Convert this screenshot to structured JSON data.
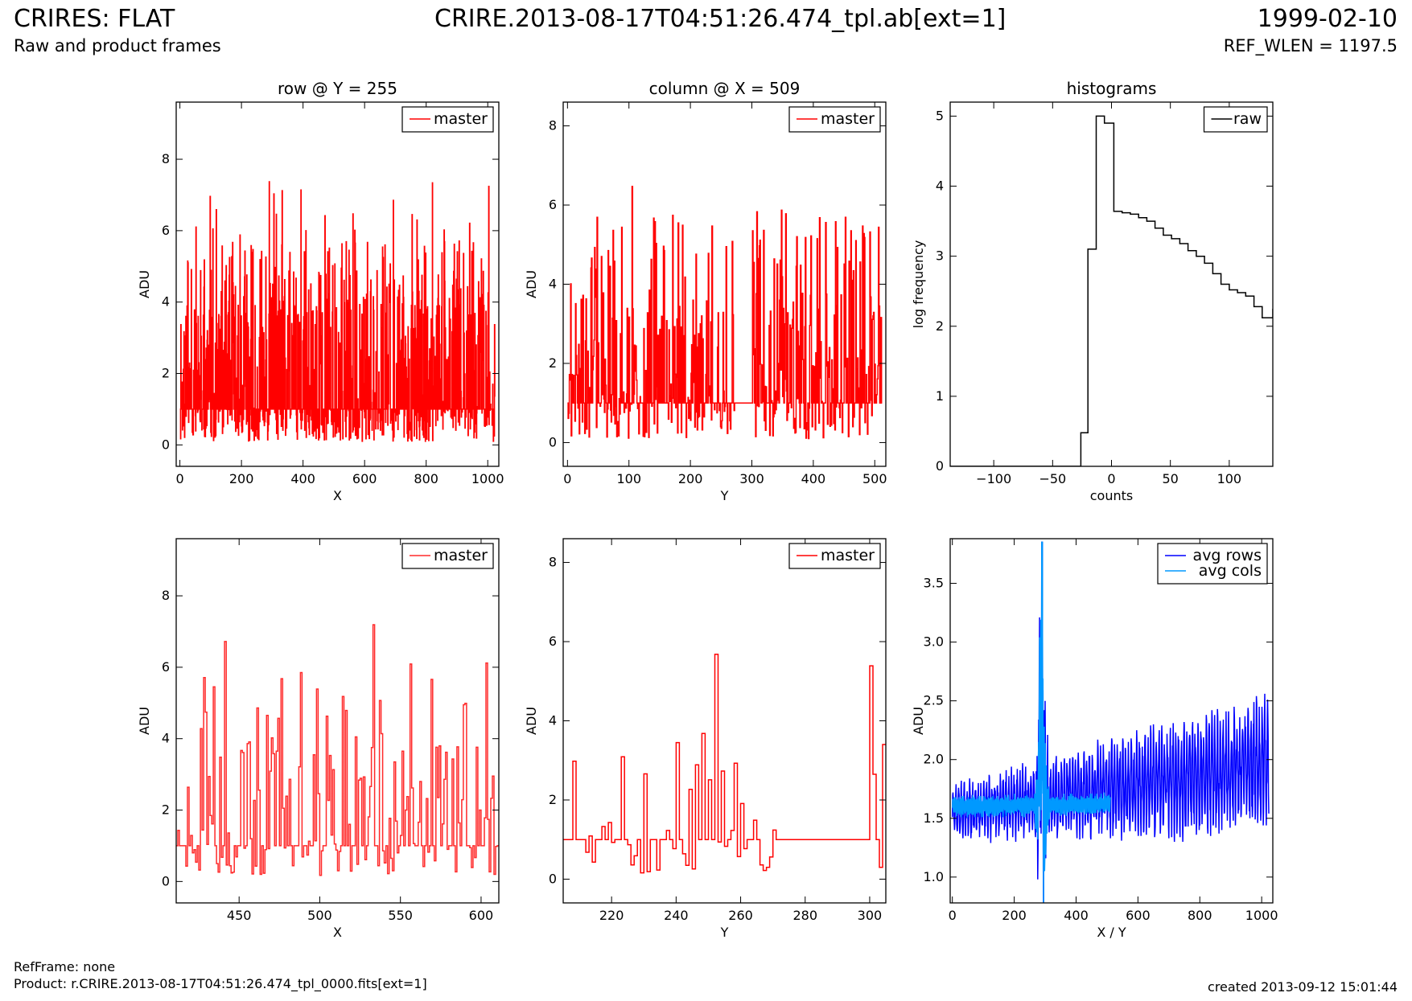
{
  "header": {
    "left_title": "CRIRES: FLAT",
    "left_subtitle": "Raw and product frames",
    "center_title": "CRIRE.2013-08-17T04:51:26.474_tpl.ab[ext=1]",
    "right_title": "1999-02-10",
    "right_subtitle": "REF_WLEN = 1197.5"
  },
  "footer": {
    "refframe": "RefFrame: none",
    "product": "Product: r.CRIRE.2013-08-17T04:51:26.474_tpl_0000.fits[ext=1]",
    "created": "created 2013-09-12 15:01:44"
  },
  "colors": {
    "red": "#ff0000",
    "red_light": "#ff2a2a",
    "black": "#000000",
    "blue": "#0000ff",
    "light_blue": "#0099ff"
  },
  "chart_data": [
    {
      "id": "row_full",
      "type": "line",
      "title": "row @ Y = 255",
      "xlabel": "X",
      "ylabel": "ADU",
      "xlim": [
        -12,
        1036
      ],
      "ylim": [
        -0.6,
        9.6
      ],
      "xticks": [
        0,
        200,
        400,
        600,
        800,
        1000
      ],
      "yticks": [
        0,
        2,
        4,
        6,
        8
      ],
      "legend": "top-right",
      "series": [
        {
          "name": "master",
          "color": "#ff0000",
          "style": "step",
          "generator": {
            "kind": "noise",
            "n": 1024,
            "x0": 0,
            "dx": 1,
            "baseline": 1.0,
            "min": 0.1,
            "max": 7.4,
            "drift": 0.0004,
            "seed": 11
          },
          "values": []
        }
      ]
    },
    {
      "id": "col_full",
      "type": "line",
      "title": "column @ X = 509",
      "xlabel": "Y",
      "ylabel": "ADU",
      "xlim": [
        -7,
        518
      ],
      "ylim": [
        -0.6,
        8.6
      ],
      "xticks": [
        0,
        100,
        200,
        300,
        400,
        500
      ],
      "yticks": [
        0,
        2,
        4,
        6,
        8
      ],
      "legend": "top-right",
      "series": [
        {
          "name": "master",
          "color": "#ff0000",
          "style": "step",
          "generator": {
            "kind": "noise",
            "n": 512,
            "x0": 0,
            "dx": 1,
            "baseline": 1.0,
            "min": 0.1,
            "max": 6.6,
            "flat": [
              272,
              299
            ],
            "seed": 23
          },
          "values": []
        }
      ]
    },
    {
      "id": "hist",
      "type": "line",
      "title": "histograms",
      "xlabel": "counts",
      "ylabel": "log frequency",
      "xlim": [
        -137,
        137
      ],
      "ylim": [
        0,
        5.2
      ],
      "xticks": [
        -100,
        -50,
        0,
        50,
        100
      ],
      "yticks": [
        0,
        1,
        2,
        3,
        4,
        5
      ],
      "legend": "top-right",
      "series": [
        {
          "name": "raw",
          "color": "#000000",
          "style": "hist",
          "x": [
            -137,
            -30,
            -26,
            -20,
            -13,
            -6,
            2,
            9,
            16,
            23,
            30,
            37,
            44,
            51,
            58,
            65,
            72,
            79,
            86,
            93,
            100,
            107,
            114,
            121,
            128,
            137
          ],
          "values": [
            0,
            0,
            0.48,
            3.1,
            5.0,
            4.9,
            3.64,
            3.62,
            3.6,
            3.55,
            3.5,
            3.4,
            3.3,
            3.25,
            3.18,
            3.08,
            3.0,
            2.9,
            2.75,
            2.6,
            2.52,
            2.48,
            2.43,
            2.28,
            2.12,
            2.25
          ]
        }
      ]
    },
    {
      "id": "row_zoom",
      "type": "line",
      "xlabel": "X",
      "ylabel": "ADU",
      "xlim": [
        411,
        611
      ],
      "ylim": [
        -0.6,
        9.6
      ],
      "xticks": [
        450,
        500,
        550,
        600
      ],
      "yticks": [
        0,
        2,
        4,
        6,
        8
      ],
      "legend": "top-right",
      "series": [
        {
          "name": "master",
          "color": "#ff2a2a",
          "style": "step",
          "generator": {
            "kind": "noise",
            "n": 200,
            "x0": 411,
            "dx": 1,
            "baseline": 1.0,
            "min": 0.15,
            "max": 7.4,
            "seed": 37
          },
          "values": []
        }
      ]
    },
    {
      "id": "col_zoom",
      "type": "line",
      "xlabel": "Y",
      "ylabel": "ADU",
      "xlim": [
        205,
        305
      ],
      "ylim": [
        -0.6,
        8.6
      ],
      "xticks": [
        220,
        240,
        260,
        280,
        300
      ],
      "yticks": [
        0,
        2,
        4,
        6,
        8
      ],
      "legend": "top-right",
      "series": [
        {
          "name": "master",
          "color": "#ff0000",
          "style": "step",
          "generator": {
            "kind": "noise",
            "n": 100,
            "x0": 205,
            "dx": 1,
            "baseline": 1.0,
            "min": 0.15,
            "max": 6.6,
            "flat": [
              272,
              299
            ],
            "seed": 53
          },
          "values": []
        }
      ]
    },
    {
      "id": "averages",
      "type": "line",
      "xlabel": "X / Y",
      "ylabel": "ADU",
      "xlim": [
        -7,
        1036
      ],
      "ylim": [
        0.78,
        3.88
      ],
      "xticks": [
        0,
        200,
        400,
        600,
        800,
        1000
      ],
      "yticks": [
        1.0,
        1.5,
        2.0,
        2.5,
        3.0,
        3.5
      ],
      "legend": "top-right",
      "series": [
        {
          "name": "avg rows",
          "color": "#0000ff",
          "style": "line",
          "generator": {
            "kind": "osc",
            "n": 1024,
            "x0": 0,
            "dx": 1,
            "base_start": 1.55,
            "base_end": 1.95,
            "amp_start": 0.18,
            "amp_end": 0.45,
            "period": 9,
            "spike": 290,
            "seed": 71
          },
          "values": []
        },
        {
          "name": "avg cols",
          "color": "#0099ff",
          "style": "line",
          "generator": {
            "kind": "osc",
            "n": 512,
            "x0": 0,
            "dx": 1,
            "base_start": 1.6,
            "base_end": 1.62,
            "amp_start": 0.07,
            "amp_end": 0.07,
            "period": 5,
            "spike": 290,
            "seed": 89
          },
          "values": []
        }
      ]
    }
  ]
}
